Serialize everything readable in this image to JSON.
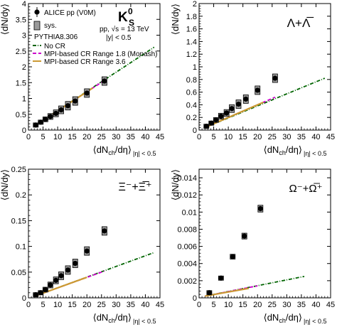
{
  "chart_data": [
    {
      "type": "scatter",
      "panel": "k0s",
      "ylabel": "⟨dN/dy⟩",
      "xlabel_main": "⟨dN",
      "xlabel_sub": "ch",
      "xlabel_tail": "/dη⟩",
      "xlabel_range": "|η| < 0.5",
      "title_main": "K",
      "title_sup": "0",
      "title_sub": "S",
      "xlim": [
        0,
        45
      ],
      "ylim": [
        0,
        4
      ],
      "xticks": [
        0,
        5,
        10,
        15,
        20,
        25,
        30,
        35,
        40,
        45
      ],
      "yticks": [
        0,
        0.5,
        1,
        1.5,
        2,
        2.5,
        3,
        3.5,
        4
      ],
      "ytick_labels": [
        "0",
        "0.5",
        "1",
        "1.5",
        "2",
        "2.5",
        "3",
        "3.5",
        "4"
      ],
      "series": [
        {
          "name": "ALICE pp (V0M)",
          "kind": "data",
          "x": [
            2.5,
            4.2,
            5.8,
            7.5,
            9.4,
            11.2,
            13.5,
            16.0,
            20.0,
            26.0
          ],
          "y": [
            0.16,
            0.25,
            0.34,
            0.43,
            0.53,
            0.64,
            0.77,
            0.92,
            1.17,
            1.55
          ]
        },
        {
          "name": "No CR",
          "kind": "line",
          "color": "#006400",
          "x": [
            2.0,
            43.0
          ],
          "y": [
            0.13,
            2.62
          ]
        },
        {
          "name": "MPI-based CR Range 1.8 (Monash)",
          "kind": "line",
          "color": "#cc00cc",
          "x": [
            2.0,
            26.0
          ],
          "y": [
            0.13,
            1.57
          ]
        },
        {
          "name": "MPI-based CR Range 3.6",
          "kind": "line",
          "color": "#cc9933",
          "x": [
            2.0,
            22.0
          ],
          "y": [
            0.13,
            1.33
          ]
        }
      ],
      "legend": {
        "data_label": "ALICE pp (V0M)",
        "sys_label": "sys.",
        "model_header": "PYTHIA8.306",
        "energy_label": "pp, √s = 13 TeV",
        "rapidity_label": "|y| < 0.5",
        "lines": [
          "No CR",
          "MPI-based CR Range 1.8 (Monash)",
          "MPI-based CR Range 3.6"
        ]
      }
    },
    {
      "type": "scatter",
      "panel": "lambda",
      "ylabel": "⟨dN/dy⟩",
      "xlabel_main": "⟨dN",
      "xlabel_sub": "ch",
      "xlabel_tail": "/dη⟩",
      "xlabel_range": "|η| < 0.5",
      "title": "Λ+Λ̅",
      "xlim": [
        0,
        45
      ],
      "ylim": [
        0,
        2
      ],
      "xticks": [
        0,
        5,
        10,
        15,
        20,
        25,
        30,
        35,
        40,
        45
      ],
      "yticks": [
        0,
        0.2,
        0.4,
        0.6,
        0.8,
        1,
        1.2,
        1.4,
        1.6,
        1.8,
        2
      ],
      "ytick_labels": [
        "0",
        "0.2",
        "0.4",
        "0.6",
        "0.8",
        "1",
        "1.2",
        "1.4",
        "1.6",
        "1.8",
        "2"
      ],
      "series": [
        {
          "name": "data",
          "kind": "data",
          "x": [
            2.5,
            4.2,
            5.8,
            7.5,
            9.4,
            11.2,
            13.5,
            16.0,
            20.0,
            26.0
          ],
          "y": [
            0.06,
            0.11,
            0.16,
            0.22,
            0.27,
            0.34,
            0.41,
            0.49,
            0.63,
            0.82
          ]
        },
        {
          "name": "No CR",
          "kind": "line",
          "color": "#006400",
          "x": [
            2.0,
            43.0
          ],
          "y": [
            0.04,
            0.82
          ]
        },
        {
          "name": "MPI-based CR Range 1.8 (Monash)",
          "kind": "line",
          "color": "#cc00cc",
          "x": [
            2.0,
            26.0
          ],
          "y": [
            0.04,
            0.52
          ]
        },
        {
          "name": "MPI-based CR Range 3.6",
          "kind": "line",
          "color": "#cc9933",
          "x": [
            2.0,
            22.0
          ],
          "y": [
            0.04,
            0.44
          ]
        }
      ]
    },
    {
      "type": "scatter",
      "panel": "xi",
      "ylabel": "⟨dN/dy⟩",
      "xlabel_main": "⟨dN",
      "xlabel_sub": "ch",
      "xlabel_tail": "/dη⟩",
      "xlabel_range": "|η| < 0.5",
      "title": "Ξ⁻+Ξ̅⁺",
      "xlim": [
        0,
        45
      ],
      "ylim": [
        0,
        0.25
      ],
      "xticks": [
        0,
        5,
        10,
        15,
        20,
        25,
        30,
        35,
        40,
        45
      ],
      "yticks": [
        0,
        0.05,
        0.1,
        0.15,
        0.2,
        0.25
      ],
      "ytick_labels": [
        "0",
        "0.05",
        "0.1",
        "0.15",
        "0.2",
        "0.25"
      ],
      "series": [
        {
          "name": "data",
          "kind": "data",
          "x": [
            2.5,
            4.2,
            5.8,
            7.5,
            9.4,
            11.2,
            13.5,
            16.0,
            20.0,
            26.0
          ],
          "y": [
            0.006,
            0.01,
            0.016,
            0.025,
            0.034,
            0.043,
            0.054,
            0.067,
            0.091,
            0.13
          ]
        },
        {
          "name": "No CR",
          "kind": "line",
          "color": "#006400",
          "x": [
            2.0,
            43.0
          ],
          "y": [
            0.003,
            0.088
          ]
        },
        {
          "name": "MPI-based CR Range 1.8 (Monash)",
          "kind": "line",
          "color": "#cc00cc",
          "x": [
            2.0,
            26.0
          ],
          "y": [
            0.003,
            0.052
          ]
        },
        {
          "name": "MPI-based CR Range 3.6",
          "kind": "line",
          "color": "#cc9933",
          "x": [
            2.0,
            20.0
          ],
          "y": [
            0.003,
            0.04
          ]
        }
      ]
    },
    {
      "type": "scatter",
      "panel": "omega",
      "ylabel": "⟨dN/dy⟩",
      "xlabel_main": "⟨dN",
      "xlabel_sub": "ch",
      "xlabel_tail": "/dη⟩",
      "xlabel_range": "|η| < 0.5",
      "title": "Ω⁻+Ω̅⁺",
      "xlim": [
        0,
        45
      ],
      "ylim": [
        0,
        0.015
      ],
      "xticks": [
        0,
        5,
        10,
        15,
        20,
        25,
        30,
        35,
        40,
        45
      ],
      "yticks": [
        0,
        0.002,
        0.004,
        0.006,
        0.008,
        0.01,
        0.012,
        0.014
      ],
      "ytick_labels": [
        "0",
        "0.002",
        "0.004",
        "0.006",
        "0.008",
        "0.01",
        "0.012",
        "0.014"
      ],
      "series": [
        {
          "name": "data",
          "kind": "data",
          "x": [
            3.5,
            7.5,
            11.5,
            15.5,
            21.0
          ],
          "y": [
            0.0006,
            0.0023,
            0.0048,
            0.0072,
            0.0104
          ]
        },
        {
          "name": "No CR",
          "kind": "line",
          "color": "#006400",
          "x": [
            2.0,
            36.0
          ],
          "y": [
            0.0002,
            0.0025
          ]
        },
        {
          "name": "MPI-based CR Range 1.8 (Monash)",
          "kind": "line",
          "color": "#cc00cc",
          "x": [
            2.0,
            20.0
          ],
          "y": [
            0.0002,
            0.0014
          ]
        },
        {
          "name": "MPI-based CR Range 3.6",
          "kind": "line",
          "color": "#cc9933",
          "x": [
            2.0,
            17.0
          ],
          "y": [
            0.0002,
            0.0011
          ]
        }
      ]
    }
  ]
}
